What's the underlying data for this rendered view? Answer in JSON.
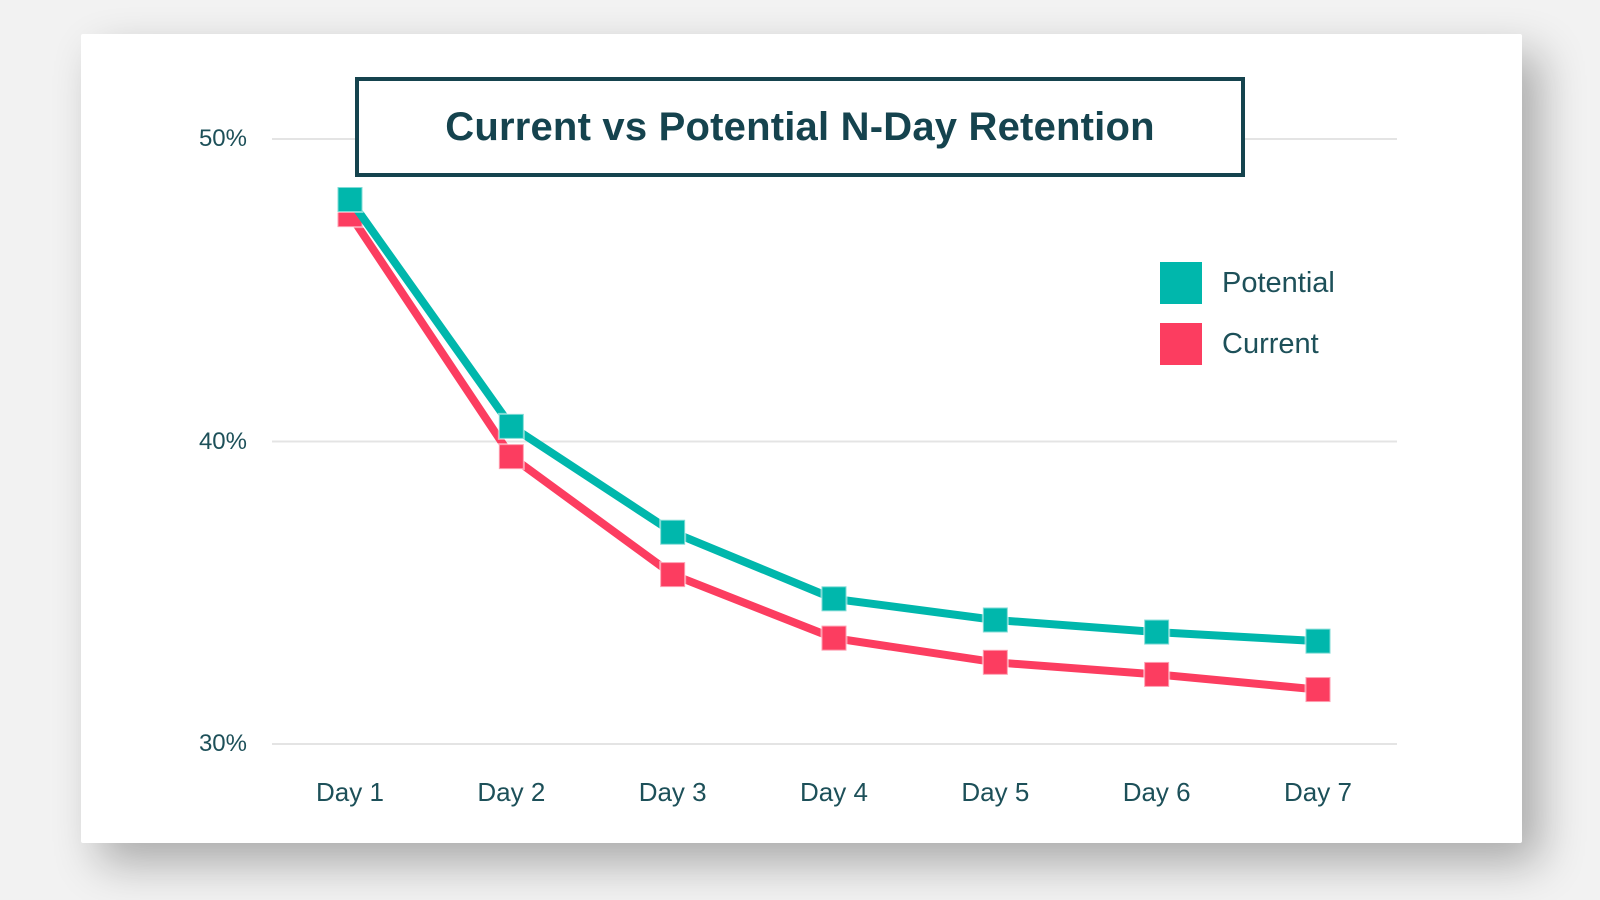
{
  "page": {
    "background_color": "#f2f2f2",
    "card_color": "#ffffff"
  },
  "chart_data": {
    "type": "line",
    "title": "Current vs Potential N-Day Retention",
    "categories": [
      "Day 1",
      "Day 2",
      "Day 3",
      "Day 4",
      "Day 5",
      "Day 6",
      "Day 7"
    ],
    "series": [
      {
        "name": "Potential",
        "color": "#00b7ac",
        "values": [
          48.0,
          40.5,
          37.0,
          34.8,
          34.1,
          33.7,
          33.4
        ]
      },
      {
        "name": "Current",
        "color": "#fc3d60",
        "values": [
          47.5,
          39.5,
          35.6,
          33.5,
          32.7,
          32.3,
          31.8
        ]
      }
    ],
    "xlabel": "",
    "ylabel": "",
    "y_ticks": [
      {
        "label": "50%",
        "value": 50
      },
      {
        "label": "40%",
        "value": 40
      },
      {
        "label": "30%",
        "value": 30
      }
    ],
    "ylim": [
      29.5,
      51.5
    ],
    "grid": true,
    "grid_color": "#e4e4e4",
    "legend_position": "upper-right",
    "marker": "square",
    "title_color": "#15434e",
    "axis_text_color": "#1d5059"
  }
}
